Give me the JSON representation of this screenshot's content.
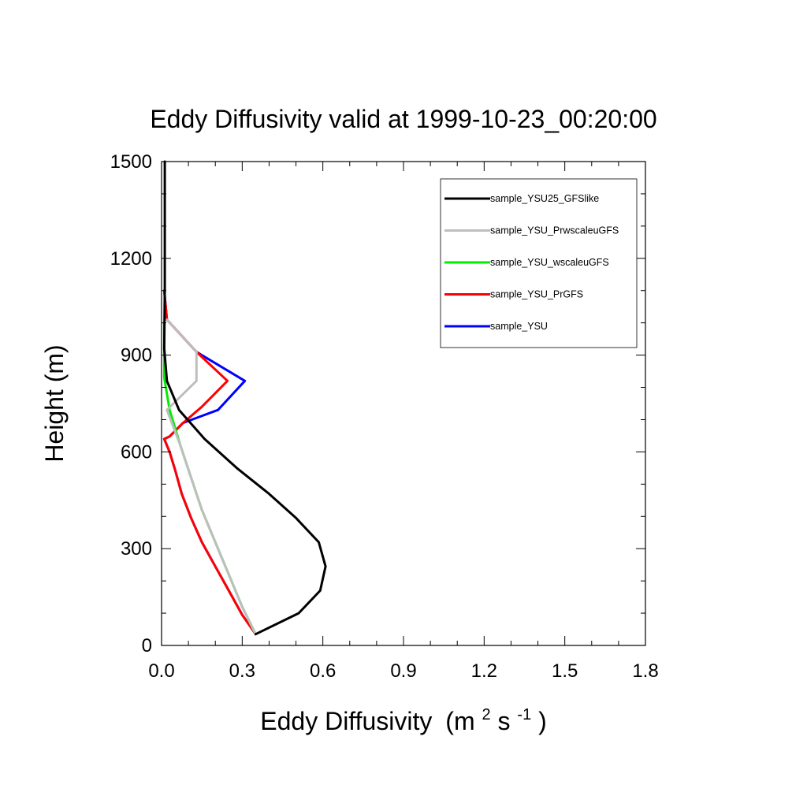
{
  "chart_data": {
    "type": "line",
    "title": "Eddy Diffusivity valid at 1999-10-23_00:20:00",
    "xlabel": "Eddy Diffusivity",
    "xlabel_units": {
      "open": "(m",
      "sup1": "2",
      "mid": " s",
      "sup2": "-1",
      "close": ")"
    },
    "ylabel": "Height (m)",
    "xlim": [
      0,
      1.8
    ],
    "ylim": [
      0,
      1500
    ],
    "xticks": [
      0.0,
      0.3,
      0.6,
      0.9,
      1.2,
      1.5,
      1.8
    ],
    "xtick_labels": [
      "0.0",
      "0.3",
      "0.6",
      "0.9",
      "1.2",
      "1.5",
      "1.8"
    ],
    "yticks": [
      0,
      300,
      600,
      900,
      1200,
      1500
    ],
    "ytick_labels": [
      "0",
      "300",
      "600",
      "900",
      "1200",
      "1500"
    ],
    "grid": false,
    "legend_position": "top-right",
    "series": [
      {
        "name": "sample_YSU",
        "color": "#0000ff",
        "points": [
          [
            0.35,
            35
          ],
          [
            0.3,
            95
          ],
          [
            0.25,
            170
          ],
          [
            0.2,
            245
          ],
          [
            0.15,
            320
          ],
          [
            0.11,
            395
          ],
          [
            0.075,
            470
          ],
          [
            0.05,
            545
          ],
          [
            0.03,
            600
          ],
          [
            0.01,
            640
          ],
          [
            0.03,
            648
          ],
          [
            0.08,
            690
          ],
          [
            0.21,
            730
          ],
          [
            0.31,
            820
          ],
          [
            0.13,
            910
          ],
          [
            0.02,
            1010
          ],
          [
            0.01,
            1100
          ]
        ]
      },
      {
        "name": "sample_YSU_PrGFS",
        "color": "#ff0000",
        "points": [
          [
            0.35,
            35
          ],
          [
            0.3,
            95
          ],
          [
            0.25,
            170
          ],
          [
            0.2,
            245
          ],
          [
            0.15,
            320
          ],
          [
            0.11,
            395
          ],
          [
            0.075,
            470
          ],
          [
            0.05,
            545
          ],
          [
            0.03,
            600
          ],
          [
            0.01,
            640
          ],
          [
            0.03,
            648
          ],
          [
            0.08,
            690
          ],
          [
            0.15,
            740
          ],
          [
            0.245,
            820
          ],
          [
            0.13,
            910
          ],
          [
            0.02,
            1010
          ],
          [
            0.01,
            1100
          ]
        ]
      },
      {
        "name": "sample_YSU_wscaleuGFS",
        "color": "#00ee00",
        "points": [
          [
            0.35,
            35
          ],
          [
            0.3,
            120
          ],
          [
            0.25,
            220
          ],
          [
            0.2,
            320
          ],
          [
            0.15,
            420
          ],
          [
            0.11,
            520
          ],
          [
            0.07,
            620
          ],
          [
            0.03,
            730
          ],
          [
            0.01,
            830
          ],
          [
            0.01,
            1000
          ]
        ]
      },
      {
        "name": "sample_YSU_PrwscaleuGFS",
        "color": "#bebebe",
        "points": [
          [
            0.35,
            35
          ],
          [
            0.3,
            120
          ],
          [
            0.25,
            220
          ],
          [
            0.2,
            320
          ],
          [
            0.15,
            420
          ],
          [
            0.11,
            520
          ],
          [
            0.07,
            620
          ],
          [
            0.02,
            730
          ],
          [
            0.13,
            820
          ],
          [
            0.13,
            910
          ],
          [
            0.02,
            1010
          ]
        ]
      },
      {
        "name": "sample_YSU25_GFSlike",
        "color": "#000000",
        "points": [
          [
            0.35,
            35
          ],
          [
            0.51,
            100
          ],
          [
            0.59,
            170
          ],
          [
            0.61,
            245
          ],
          [
            0.585,
            320
          ],
          [
            0.5,
            395
          ],
          [
            0.4,
            470
          ],
          [
            0.28,
            550
          ],
          [
            0.16,
            640
          ],
          [
            0.065,
            730
          ],
          [
            0.02,
            820
          ],
          [
            0.01,
            920
          ],
          [
            0.012,
            1100
          ],
          [
            0.012,
            1300
          ],
          [
            0.012,
            1500
          ]
        ]
      }
    ],
    "legend_order": [
      "sample_YSU25_GFSlike",
      "sample_YSU_PrwscaleuGFS",
      "sample_YSU_wscaleuGFS",
      "sample_YSU_PrGFS",
      "sample_YSU"
    ]
  }
}
